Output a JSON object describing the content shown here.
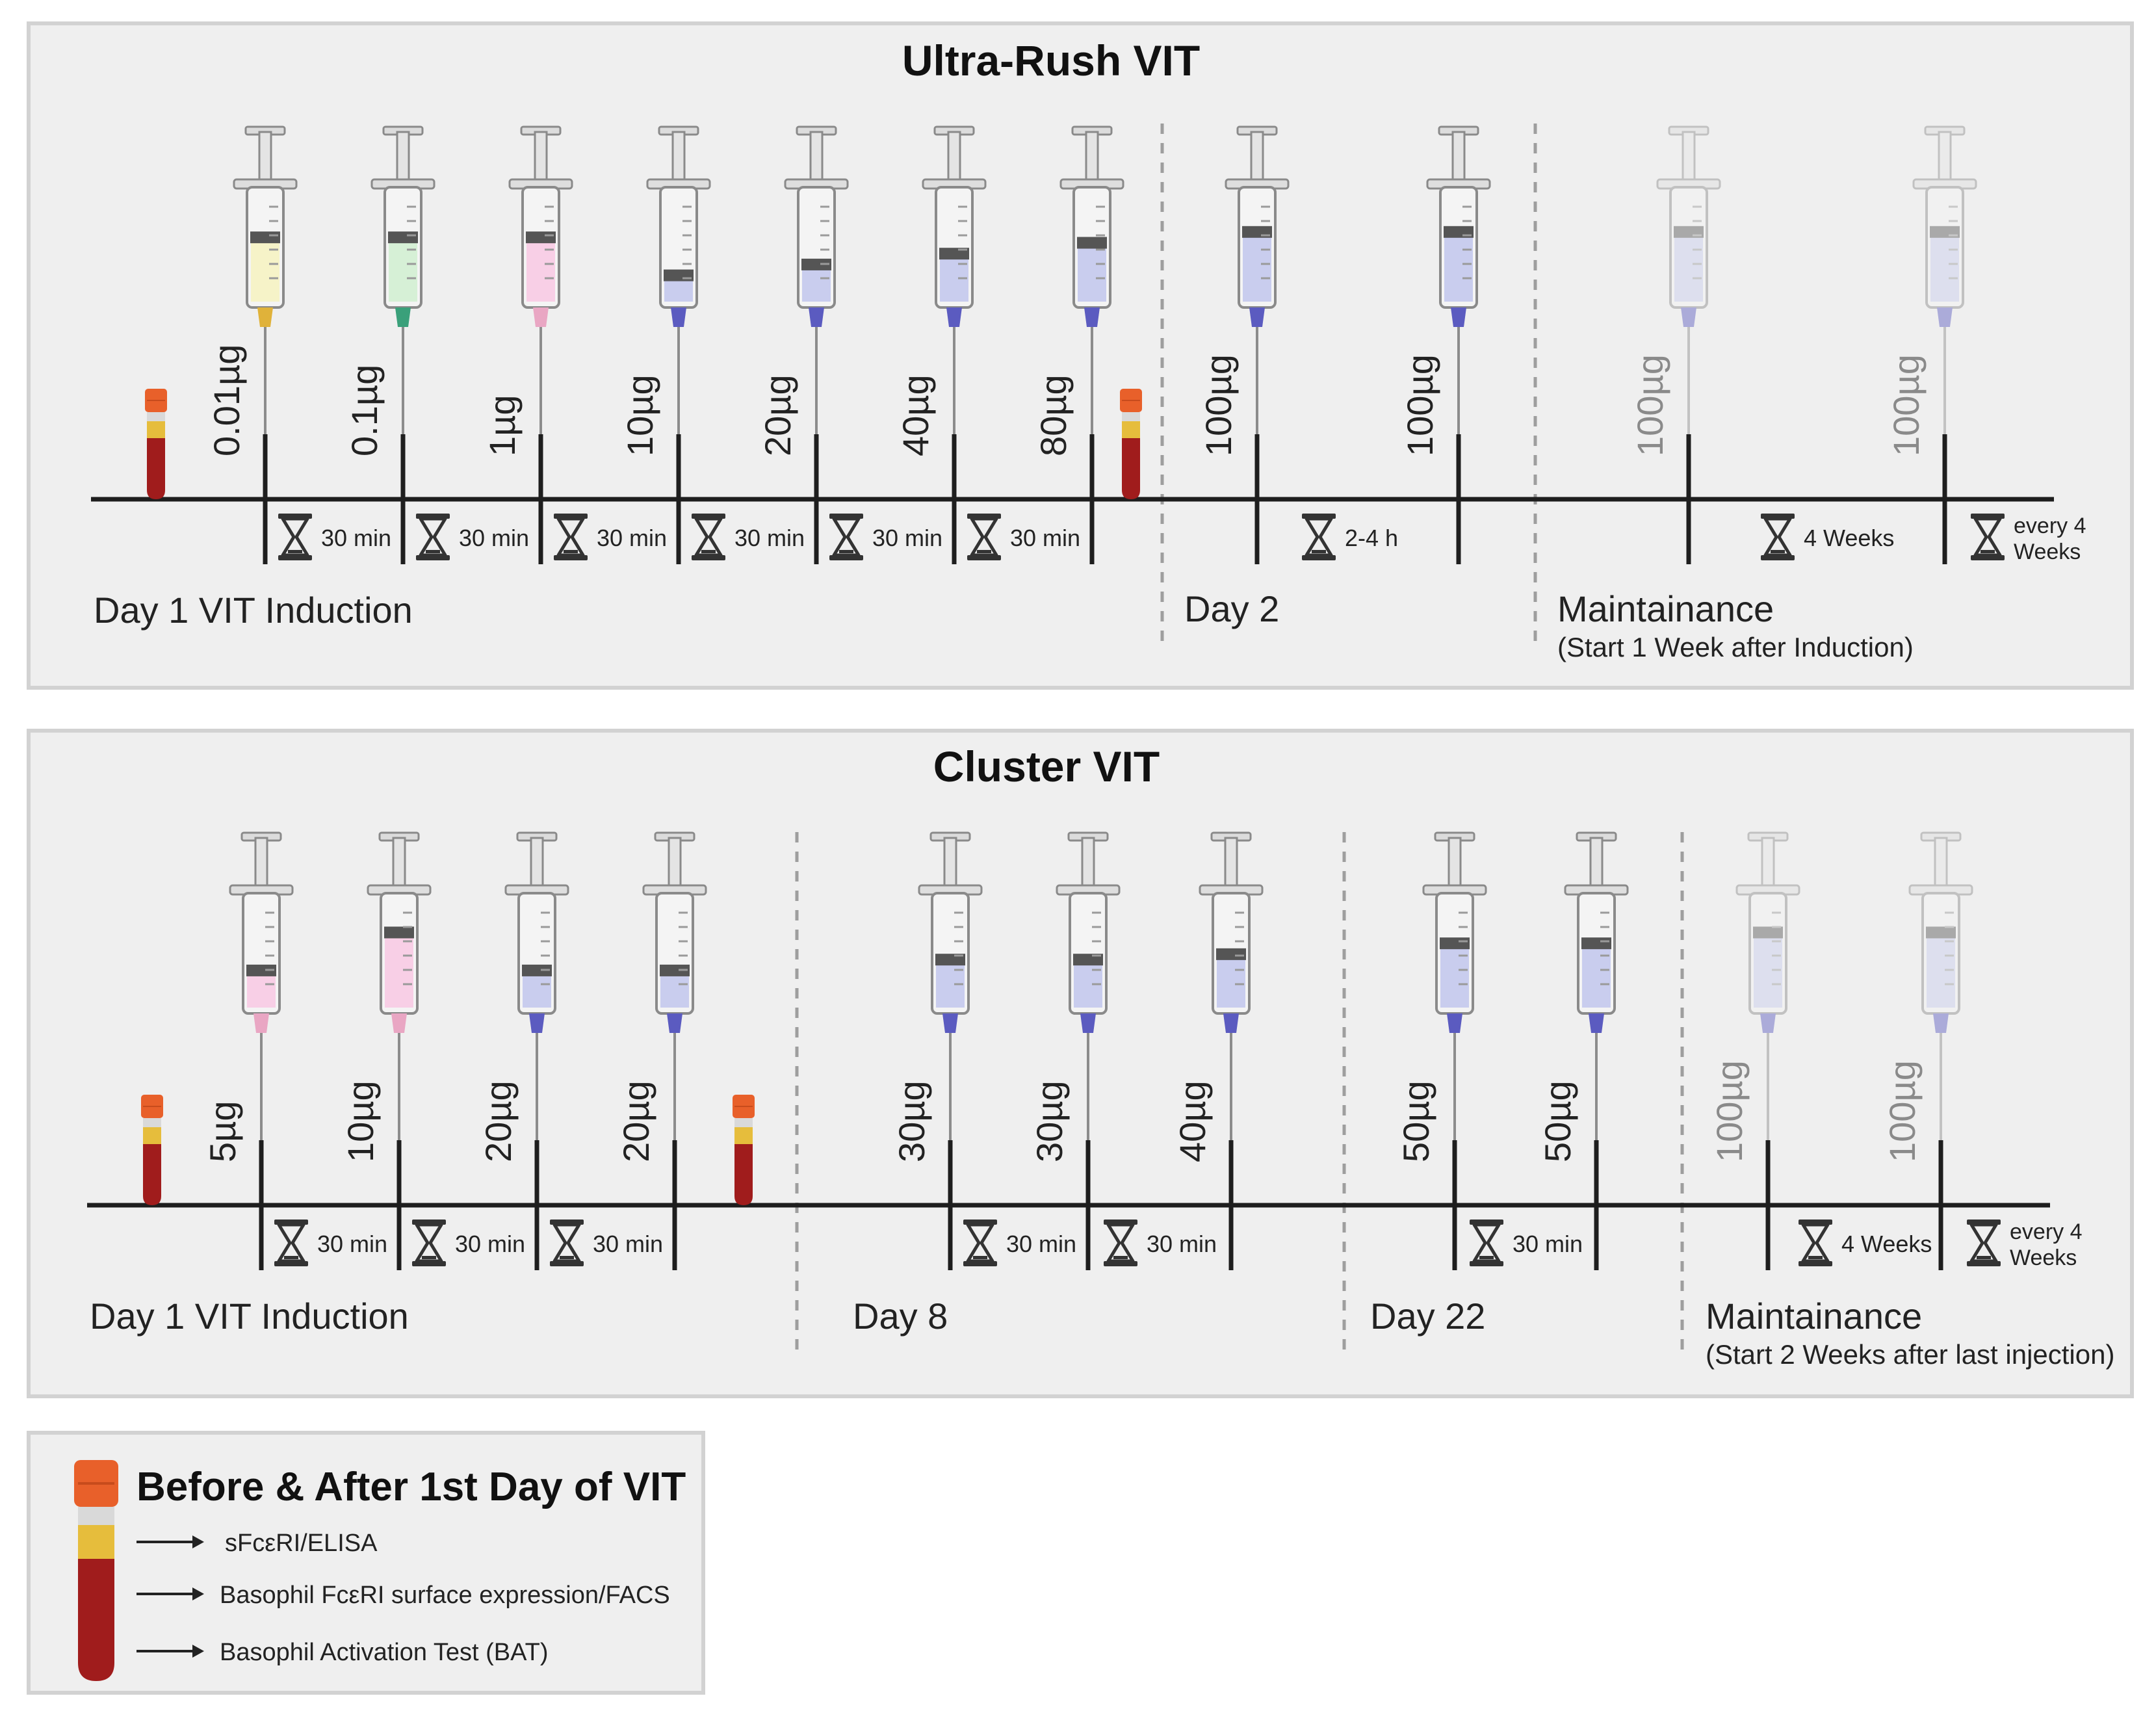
{
  "colors": {
    "panel_bg": "#efefef",
    "panel_border": "#d2d2d2",
    "axis": "#1e1e1e",
    "divider": "#9e9e9e",
    "text": "#222222",
    "faded_text": "#8a8a8a",
    "plunger": "#555555",
    "tube_cap": "#e8602a",
    "tube_plasma": "#e6bd3c",
    "tube_blood": "#a01c1c",
    "liquids": {
      "yellow": {
        "fill": "#f6f3c8",
        "needle": "#e0b23a"
      },
      "green": {
        "fill": "#d6f0d6",
        "needle": "#3aa07a"
      },
      "pink": {
        "fill": "#f8cfe6",
        "needle": "#e9a6c3"
      },
      "blue": {
        "fill": "#c9cdee",
        "needle": "#5b5bc0"
      }
    }
  },
  "ultra_rush": {
    "title": "Ultra-Rush VIT",
    "phases": [
      {
        "label": "Day 1 VIT Induction"
      },
      {
        "label": "Day 2"
      },
      {
        "label": "Maintainance",
        "sublabel": "(Start 1 Week after Induction)"
      }
    ],
    "injections": [
      {
        "dose": "0.01µg",
        "liquid": "yellow",
        "level": 0.55,
        "faded": false
      },
      {
        "dose": "0.1µg",
        "liquid": "green",
        "level": 0.55,
        "faded": false
      },
      {
        "dose": "1µg",
        "liquid": "pink",
        "level": 0.55,
        "faded": false
      },
      {
        "dose": "10µg",
        "liquid": "blue",
        "level": 0.2,
        "faded": false
      },
      {
        "dose": "20µg",
        "liquid": "blue",
        "level": 0.3,
        "faded": false
      },
      {
        "dose": "40µg",
        "liquid": "blue",
        "level": 0.4,
        "faded": false
      },
      {
        "dose": "80µg",
        "liquid": "blue",
        "level": 0.5,
        "faded": false
      },
      {
        "dose": "100µg",
        "liquid": "blue",
        "level": 0.6,
        "faded": false
      },
      {
        "dose": "100µg",
        "liquid": "blue",
        "level": 0.6,
        "faded": false
      },
      {
        "dose": "100µg",
        "liquid": "blue",
        "level": 0.6,
        "faded": true
      },
      {
        "dose": "100µg",
        "liquid": "blue",
        "level": 0.6,
        "faded": true
      }
    ],
    "intervals": [
      "30 min",
      "30 min",
      "30 min",
      "30 min",
      "30 min",
      "30 min",
      "2-4 h",
      "4 Weeks",
      [
        "every 4",
        "Weeks"
      ]
    ]
  },
  "cluster": {
    "title": "Cluster VIT",
    "phases": [
      {
        "label": "Day 1 VIT Induction"
      },
      {
        "label": "Day 8"
      },
      {
        "label": "Day 22"
      },
      {
        "label": "Maintainance",
        "sublabel": "(Start 2 Weeks after last injection)"
      }
    ],
    "injections": [
      {
        "dose": "5µg",
        "liquid": "pink",
        "level": 0.3,
        "faded": false
      },
      {
        "dose": "10µg",
        "liquid": "pink",
        "level": 0.65,
        "faded": false
      },
      {
        "dose": "20µg",
        "liquid": "blue",
        "level": 0.3,
        "faded": false
      },
      {
        "dose": "20µg",
        "liquid": "blue",
        "level": 0.3,
        "faded": false
      },
      {
        "dose": "30µg",
        "liquid": "blue",
        "level": 0.4,
        "faded": false
      },
      {
        "dose": "30µg",
        "liquid": "blue",
        "level": 0.4,
        "faded": false
      },
      {
        "dose": "40µg",
        "liquid": "blue",
        "level": 0.45,
        "faded": false
      },
      {
        "dose": "50µg",
        "liquid": "blue",
        "level": 0.55,
        "faded": false
      },
      {
        "dose": "50µg",
        "liquid": "blue",
        "level": 0.55,
        "faded": false
      },
      {
        "dose": "100µg",
        "liquid": "blue",
        "level": 0.65,
        "faded": true
      },
      {
        "dose": "100µg",
        "liquid": "blue",
        "level": 0.65,
        "faded": true
      }
    ],
    "intervals": [
      "30 min",
      "30 min",
      "30 min",
      "30 min",
      "30 min",
      "30 min",
      "4 Weeks",
      [
        "every 4",
        "Weeks"
      ]
    ]
  },
  "legend": {
    "title": "Before & After 1st Day of VIT",
    "items": [
      "sFcεRI/ELISA",
      "Basophil FcεRI surface expression/FACS",
      "Basophil Activation Test (BAT)"
    ]
  }
}
